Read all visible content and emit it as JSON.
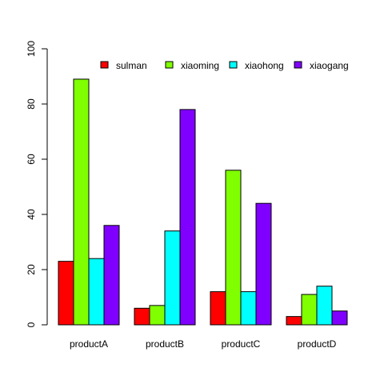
{
  "chart_data": {
    "type": "bar",
    "categories": [
      "productA",
      "productB",
      "productC",
      "productD"
    ],
    "series": [
      {
        "name": "sulman",
        "values": [
          23,
          6,
          12,
          3
        ],
        "color": "#ff0000"
      },
      {
        "name": "xiaoming",
        "values": [
          89,
          7,
          56,
          11
        ],
        "color": "#80ff00"
      },
      {
        "name": "xiaohong",
        "values": [
          24,
          34,
          12,
          14
        ],
        "color": "#00ffff"
      },
      {
        "name": "xiaogang",
        "values": [
          36,
          78,
          44,
          5
        ],
        "color": "#8000ff"
      }
    ],
    "ylim": [
      0,
      100
    ],
    "yticks": [
      0,
      20,
      40,
      60,
      80,
      100
    ],
    "title": "",
    "xlabel": "",
    "ylabel": "",
    "grid": false,
    "legend_position": "top-right"
  }
}
